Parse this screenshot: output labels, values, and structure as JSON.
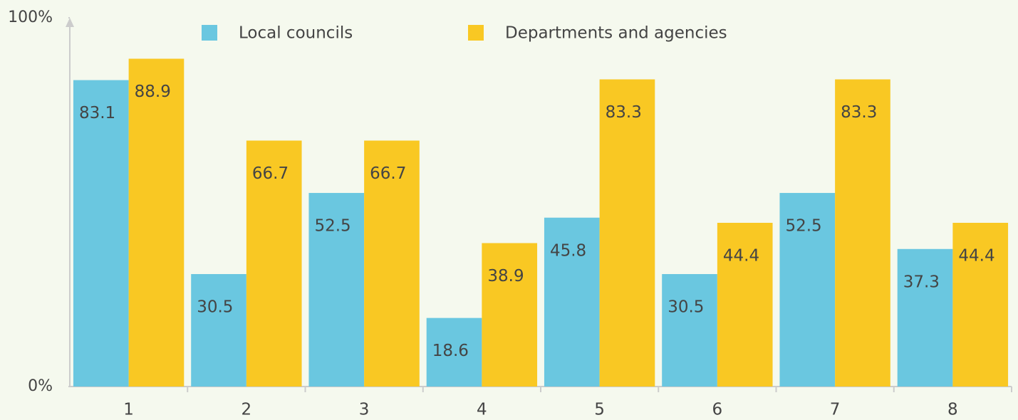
{
  "chart_data": {
    "type": "bar",
    "categories": [
      "1",
      "2",
      "3",
      "4",
      "5",
      "6",
      "7",
      "8"
    ],
    "series": [
      {
        "name": "Local councils",
        "color": "#6ac7e0",
        "values": [
          83.1,
          30.5,
          52.5,
          18.6,
          45.8,
          30.5,
          52.5,
          37.3
        ]
      },
      {
        "name": "Departments and agencies",
        "color": "#f9c823",
        "values": [
          88.9,
          66.7,
          66.7,
          38.9,
          83.3,
          44.4,
          83.3,
          44.4
        ]
      }
    ],
    "ylim": [
      0,
      100
    ],
    "yticks": [
      {
        "value": 0,
        "label": "0%"
      },
      {
        "value": 100,
        "label": "100%"
      }
    ],
    "grid": false,
    "legend": "top"
  }
}
